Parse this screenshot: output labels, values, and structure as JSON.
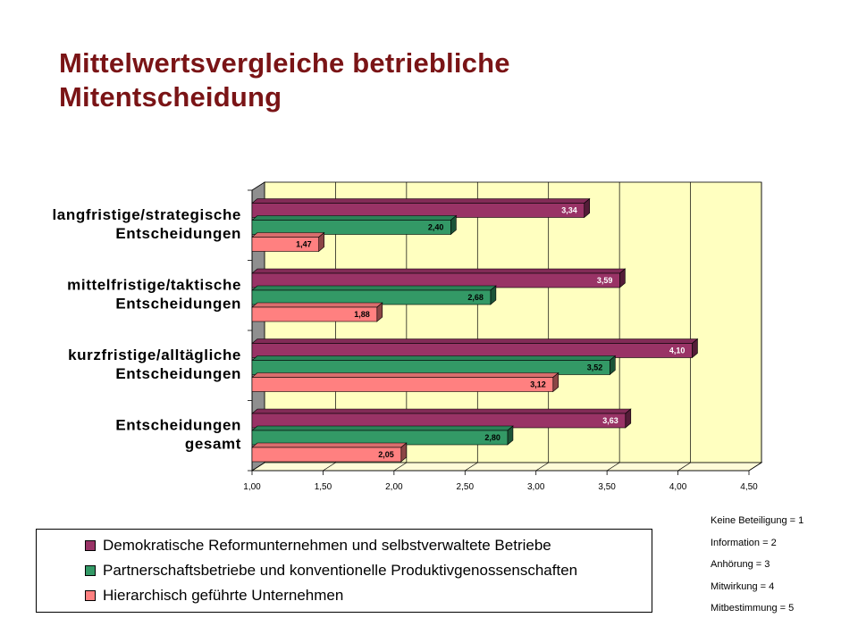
{
  "title_line1": "Mittelwertsvergleiche betriebliche",
  "title_line2": "Mitentscheidung",
  "chart_data": {
    "type": "bar",
    "orientation": "horizontal",
    "categories": [
      [
        "langfristige/strategische",
        "Entscheidungen"
      ],
      [
        "mittelfristige/taktische",
        "Entscheidungen"
      ],
      [
        "kurzfristige/alltägliche",
        "Entscheidungen"
      ],
      [
        "Entscheidungen",
        "gesamt"
      ]
    ],
    "series": [
      {
        "name": "Demokratische Reformunternehmen und selbstverwaltete Betriebe",
        "color": "#993366",
        "values": [
          3.34,
          3.59,
          4.1,
          3.63
        ],
        "labels": [
          "3,34",
          "3,59",
          "4,10",
          "3,63"
        ]
      },
      {
        "name": "Partnerschaftsbetriebe und konventionelle Produktivgenossenschaften",
        "color": "#339966",
        "values": [
          2.4,
          2.68,
          3.52,
          2.8
        ],
        "labels": [
          "2,40",
          "2,68",
          "3,52",
          "2,80"
        ]
      },
      {
        "name": "Hierarchisch geführte Unternehmen",
        "color": "#ff8080",
        "values": [
          1.47,
          1.88,
          3.12,
          2.05
        ],
        "labels": [
          "1,47",
          "1,88",
          "3,12",
          "2,05"
        ]
      }
    ],
    "xlim": [
      1.0,
      4.5
    ],
    "xticks": [
      1.0,
      1.5,
      2.0,
      2.5,
      3.0,
      3.5,
      4.0,
      4.5
    ],
    "xtick_labels": [
      "1,00",
      "1,50",
      "2,00",
      "2,50",
      "3,00",
      "3,50",
      "4,00",
      "4,50"
    ],
    "grid": true,
    "plot_background": "#ffffc0",
    "legend_position": "bottom"
  },
  "legend": [
    {
      "label": "Demokratische Reformunternehmen und selbstverwaltete Betriebe",
      "color": "#993366"
    },
    {
      "label": "Partnerschaftsbetriebe und konventionelle Produktivgenossenschaften",
      "color": "#339966"
    },
    {
      "label": "Hierarchisch geführte Unternehmen",
      "color": "#ff8080"
    }
  ],
  "scale_notes": [
    "Keine Beteiligung = 1",
    "Information = 2",
    "Anhörung = 3",
    "Mitwirkung = 4",
    "Mitbestimmung =  5"
  ]
}
